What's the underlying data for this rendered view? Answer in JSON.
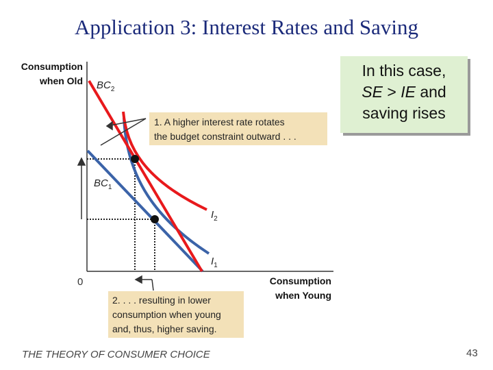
{
  "slide": {
    "title": "Application 3:  Interest Rates and Saving",
    "footer": "THE THEORY OF CONSUMER CHOICE",
    "page_number": "43"
  },
  "callout": {
    "line1": "In this case,",
    "se": "SE",
    "gt": " > ",
    "ie": "IE",
    "line2_tail": "  and",
    "line3": "saving rises",
    "background": "#dff0d2"
  },
  "diagram": {
    "y_axis_label_line1": "Consumption",
    "y_axis_label_line2": "when Old",
    "x_axis_label_line1": "Consumption",
    "x_axis_label_line2": "when Young",
    "origin_label": "0",
    "bc2_label": "BC",
    "bc2_sub": "2",
    "bc1_label": "BC",
    "bc1_sub": "1",
    "i2_label": "I",
    "i2_sub": "2",
    "i1_label": "I",
    "i1_sub": "1",
    "note1_line1": "1. A higher interest rate rotates",
    "note1_line2": "the budget constraint outward . . .",
    "note2_line1": "2. . . . resulting in lower",
    "note2_line2": "consumption when young",
    "note2_line3": "and, thus, higher saving.",
    "colors": {
      "new_curves": "#e8191c",
      "old_curves": "#3b63a8",
      "note_box": "#f3e1b8",
      "title": "#1b2a7a"
    }
  }
}
